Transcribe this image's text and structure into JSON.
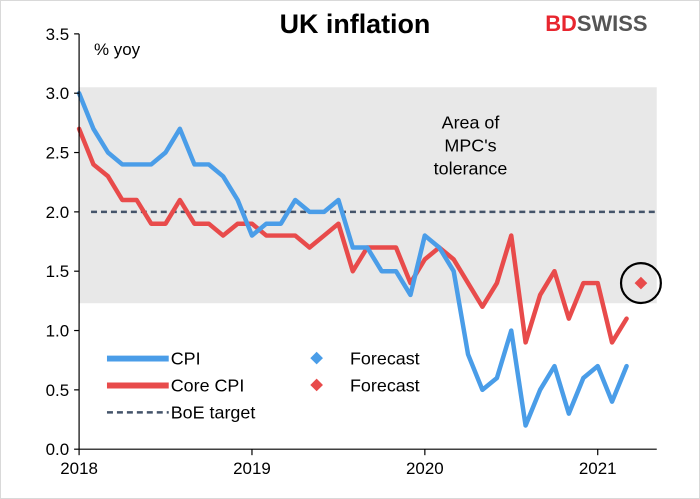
{
  "logo": {
    "part1": "BD",
    "part2": "SWISS"
  },
  "chart_data": {
    "type": "line",
    "title": "UK inflation",
    "ylabel": "% yoy",
    "ylim": [
      0.0,
      3.5
    ],
    "xlim": [
      2018.0,
      2021.33
    ],
    "y_ticks": [
      "0.0",
      "0.5",
      "1.0",
      "1.5",
      "2.0",
      "2.5",
      "3.0",
      "3.5"
    ],
    "x_ticks": [
      "2018",
      "2019",
      "2020",
      "2021"
    ],
    "tolerance_band": [
      1.23,
      3.05
    ],
    "target": 2.0,
    "annotation": [
      "Area of",
      "MPC's",
      "tolerance"
    ],
    "series": [
      {
        "name": "CPI",
        "color": "#4a9de8",
        "x": [
          2018.0,
          2018.083,
          2018.167,
          2018.25,
          2018.333,
          2018.417,
          2018.5,
          2018.583,
          2018.667,
          2018.75,
          2018.833,
          2018.917,
          2019.0,
          2019.083,
          2019.167,
          2019.25,
          2019.333,
          2019.417,
          2019.5,
          2019.583,
          2019.667,
          2019.75,
          2019.833,
          2019.917,
          2020.0,
          2020.083,
          2020.167,
          2020.25,
          2020.333,
          2020.417,
          2020.5,
          2020.583,
          2020.667,
          2020.75,
          2020.833,
          2020.917,
          2021.0,
          2021.083,
          2021.167
        ],
        "values": [
          3.0,
          2.7,
          2.5,
          2.4,
          2.4,
          2.4,
          2.5,
          2.7,
          2.4,
          2.4,
          2.3,
          2.1,
          1.8,
          1.9,
          1.9,
          2.1,
          2.0,
          2.0,
          2.1,
          1.7,
          1.7,
          1.5,
          1.5,
          1.3,
          1.8,
          1.7,
          1.5,
          0.8,
          0.5,
          0.6,
          1.0,
          0.2,
          0.5,
          0.7,
          0.3,
          0.6,
          0.7,
          0.4,
          0.7
        ]
      },
      {
        "name": "Core CPI",
        "color": "#e84b4b",
        "x": [
          2018.0,
          2018.083,
          2018.167,
          2018.25,
          2018.333,
          2018.417,
          2018.5,
          2018.583,
          2018.667,
          2018.75,
          2018.833,
          2018.917,
          2019.0,
          2019.083,
          2019.167,
          2019.25,
          2019.333,
          2019.417,
          2019.5,
          2019.583,
          2019.667,
          2019.75,
          2019.833,
          2019.917,
          2020.0,
          2020.083,
          2020.167,
          2020.25,
          2020.333,
          2020.417,
          2020.5,
          2020.583,
          2020.667,
          2020.75,
          2020.833,
          2020.917,
          2021.0,
          2021.083,
          2021.167
        ],
        "values": [
          2.7,
          2.4,
          2.3,
          2.1,
          2.1,
          1.9,
          1.9,
          2.1,
          1.9,
          1.9,
          1.8,
          1.9,
          1.9,
          1.8,
          1.8,
          1.8,
          1.7,
          1.8,
          1.9,
          1.5,
          1.7,
          1.7,
          1.7,
          1.4,
          1.6,
          1.7,
          1.6,
          1.4,
          1.2,
          1.4,
          1.8,
          0.9,
          1.3,
          1.5,
          1.1,
          1.4,
          1.4,
          0.9,
          1.1
        ]
      }
    ],
    "forecast": [
      {
        "name": "Forecast",
        "series": "CPI",
        "color": "#4a9de8",
        "x": [],
        "values": []
      },
      {
        "name": "Forecast",
        "series": "Core CPI",
        "color": "#e84b4b",
        "x": [
          2021.25
        ],
        "values": [
          1.4
        ]
      }
    ],
    "legend": [
      {
        "label": "CPI",
        "kind": "line",
        "color": "#4a9de8"
      },
      {
        "label": "Forecast",
        "kind": "diamond",
        "color": "#4a9de8"
      },
      {
        "label": "Core CPI",
        "kind": "line",
        "color": "#e84b4b"
      },
      {
        "label": "Forecast",
        "kind": "diamond",
        "color": "#e84b4b"
      },
      {
        "label": "BoE target",
        "kind": "dashed",
        "color": "#44546a"
      }
    ],
    "highlight": {
      "x": 2021.25,
      "value": 1.4
    }
  }
}
